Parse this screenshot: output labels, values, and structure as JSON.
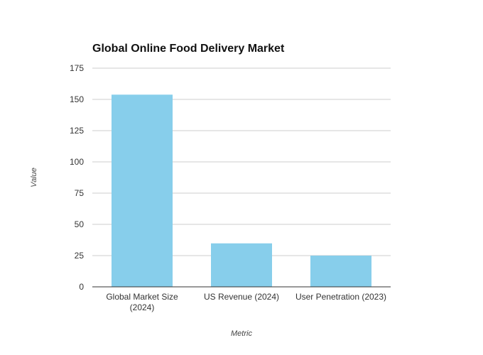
{
  "chart_data": {
    "type": "bar",
    "title": "Global Online Food Delivery Market",
    "xlabel": "Metric",
    "ylabel": "Value",
    "categories": [
      [
        "Global Market Size",
        "(2024)"
      ],
      [
        "US Revenue (2024)"
      ],
      [
        "User Penetration (2023)"
      ]
    ],
    "values": [
      153.8,
      34.8,
      25.0
    ],
    "ylim": [
      0,
      175
    ],
    "yticks": [
      0,
      25,
      50,
      75,
      100,
      125,
      150,
      175
    ],
    "bar_color": "#87ceeb",
    "grid": true,
    "legend": "none"
  }
}
